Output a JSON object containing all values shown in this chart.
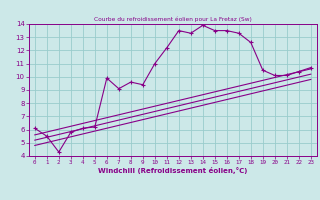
{
  "title": "Courbe du refroidissement éolien pour La Fretaz (Sw)",
  "xlabel": "Windchill (Refroidissement éolien,°C)",
  "ylabel": "",
  "bg_color": "#cce8e8",
  "line_color": "#880088",
  "grid_color": "#99cccc",
  "xlim": [
    -0.5,
    23.5
  ],
  "ylim": [
    4,
    14
  ],
  "xticks": [
    0,
    1,
    2,
    3,
    4,
    5,
    6,
    7,
    8,
    9,
    10,
    11,
    12,
    13,
    14,
    15,
    16,
    17,
    18,
    19,
    20,
    21,
    22,
    23
  ],
  "yticks": [
    4,
    5,
    6,
    7,
    8,
    9,
    10,
    11,
    12,
    13,
    14
  ],
  "curve_x": [
    0,
    1,
    2,
    3,
    4,
    5,
    6,
    7,
    8,
    9,
    10,
    11,
    12,
    13,
    14,
    15,
    16,
    17,
    18,
    19,
    20,
    21,
    22,
    23
  ],
  "curve_y": [
    6.1,
    5.5,
    4.3,
    5.8,
    6.1,
    6.2,
    9.9,
    9.1,
    9.6,
    9.4,
    11.0,
    12.2,
    13.5,
    13.3,
    13.9,
    13.5,
    13.5,
    13.3,
    12.6,
    10.5,
    10.1,
    10.1,
    10.4,
    10.7
  ],
  "line1_x": [
    0,
    23
  ],
  "line1_y": [
    4.8,
    9.8
  ],
  "line2_x": [
    0,
    23
  ],
  "line2_y": [
    5.2,
    10.2
  ],
  "line3_x": [
    0,
    23
  ],
  "line3_y": [
    5.6,
    10.6
  ]
}
